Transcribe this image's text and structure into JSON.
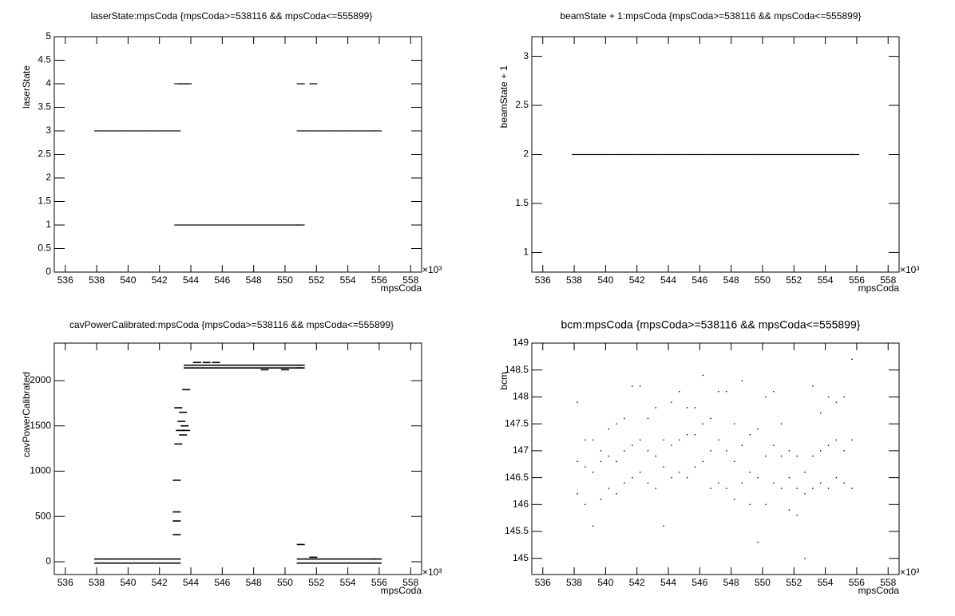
{
  "chart_data": [
    {
      "type": "scatter",
      "title": "laserState:mpsCoda {mpsCoda>=538116 && mpsCoda<=555899}",
      "x_label": "mpsCoda",
      "y_label": "laserState",
      "x_multiplier": "×10³",
      "xlim": [
        535.3,
        558.7
      ],
      "xticks": [
        536,
        538,
        540,
        542,
        544,
        546,
        548,
        550,
        552,
        554,
        556,
        558
      ],
      "ylim": [
        0,
        5
      ],
      "yticks": [
        0,
        0.5,
        1,
        1.5,
        2,
        2.5,
        3,
        3.5,
        4,
        4.5,
        5
      ],
      "color": "#000000",
      "x": [
        538.1,
        538.6,
        539.1,
        539.6,
        540.1,
        540.6,
        541.1,
        541.6,
        542.1,
        542.6,
        543.1,
        543.2,
        543.5,
        543.8,
        543.2,
        543.7,
        544.2,
        544.7,
        545.2,
        545.7,
        546.2,
        546.7,
        547.2,
        547.7,
        548.2,
        548.7,
        549.2,
        549.7,
        550.2,
        550.7,
        551.0,
        551.0,
        551.8,
        551.0,
        551.5,
        552.0,
        552.5,
        553.0,
        553.5,
        554.0,
        554.5,
        555.0,
        555.5,
        555.9
      ],
      "values": [
        3,
        3,
        3,
        3,
        3,
        3,
        3,
        3,
        3,
        3,
        3,
        4,
        4,
        4,
        1,
        1,
        1,
        1,
        1,
        1,
        1,
        1,
        1,
        1,
        1,
        1,
        1,
        1,
        1,
        1,
        1,
        4,
        4,
        3,
        3,
        3,
        3,
        3,
        3,
        3,
        3,
        3,
        3,
        3
      ]
    },
    {
      "type": "scatter",
      "title": "beamState + 1:mpsCoda {mpsCoda>=538116 && mpsCoda<=555899}",
      "x_label": "mpsCoda",
      "y_label": "beamState + 1",
      "x_multiplier": "×10³",
      "xlim": [
        535.3,
        558.7
      ],
      "xticks": [
        536,
        538,
        540,
        542,
        544,
        546,
        548,
        550,
        552,
        554,
        556,
        558
      ],
      "ylim": [
        0.8,
        3.2
      ],
      "yticks": [
        1,
        1.5,
        2,
        2.5,
        3
      ],
      "color": "#000000",
      "x": [
        538.1,
        538.6,
        539.1,
        539.6,
        540.1,
        540.6,
        541.1,
        541.6,
        542.1,
        542.6,
        543.1,
        543.6,
        544.1,
        544.6,
        545.1,
        545.6,
        546.1,
        546.6,
        547.1,
        547.6,
        548.1,
        548.6,
        549.1,
        549.6,
        550.1,
        550.6,
        551.1,
        551.6,
        552.1,
        552.6,
        553.1,
        553.6,
        554.1,
        554.6,
        555.1,
        555.6,
        555.9
      ],
      "values": [
        2,
        2,
        2,
        2,
        2,
        2,
        2,
        2,
        2,
        2,
        2,
        2,
        2,
        2,
        2,
        2,
        2,
        2,
        2,
        2,
        2,
        2,
        2,
        2,
        2,
        2,
        2,
        2,
        2,
        2,
        2,
        2,
        2,
        2,
        2,
        2,
        2
      ]
    },
    {
      "type": "scatter",
      "title": "cavPowerCalibrated:mpsCoda {mpsCoda>=538116 && mpsCoda<=555899}",
      "x_label": "mpsCoda",
      "y_label": "cavPowerCalibrated",
      "x_multiplier": "×10³",
      "xlim": [
        535.3,
        558.7
      ],
      "xticks": [
        536,
        538,
        540,
        542,
        544,
        546,
        548,
        550,
        552,
        554,
        556,
        558
      ],
      "ylim": [
        -141,
        2414
      ],
      "yticks": [
        0,
        500,
        1000,
        1500,
        2000
      ],
      "color": "#000000",
      "x": [
        538.1,
        538.6,
        539.1,
        539.6,
        540.1,
        540.6,
        541.1,
        541.6,
        542.1,
        542.6,
        543.1,
        538.1,
        538.6,
        539.1,
        539.6,
        540.1,
        540.6,
        541.1,
        541.6,
        542.1,
        542.6,
        543.1,
        543.2,
        543.2,
        543.3,
        543.4,
        543.5,
        543.5,
        543.6,
        543.7,
        543.1,
        543.1,
        543.1,
        543.1,
        543.7,
        543.8,
        544.3,
        544.8,
        545.3,
        545.8,
        546.3,
        546.8,
        547.3,
        547.8,
        548.3,
        548.8,
        549.3,
        549.8,
        550.3,
        550.8,
        551.0,
        543.8,
        544.3,
        544.8,
        545.3,
        545.8,
        546.3,
        546.8,
        547.3,
        547.8,
        548.3,
        548.8,
        549.3,
        549.8,
        550.3,
        550.8,
        551.0,
        544.4,
        545.0,
        545.6,
        548.7,
        550.0,
        551.0,
        551.5,
        552.0,
        552.5,
        553.0,
        553.5,
        554.0,
        554.5,
        555.0,
        555.5,
        555.9,
        551.0,
        551.5,
        552.0,
        552.5,
        553.0,
        553.5,
        554.0,
        554.5,
        555.0,
        555.5,
        555.9,
        551.0,
        551.8
      ],
      "values": [
        30,
        30,
        30,
        30,
        30,
        30,
        30,
        30,
        30,
        30,
        30,
        -15,
        -15,
        -15,
        -15,
        -15,
        -15,
        -15,
        -15,
        -15,
        -15,
        -15,
        1300,
        1700,
        1450,
        1550,
        1400,
        1650,
        1500,
        1450,
        900,
        550,
        300,
        450,
        1900,
        2170,
        2170,
        2170,
        2170,
        2170,
        2170,
        2170,
        2170,
        2170,
        2170,
        2170,
        2170,
        2170,
        2170,
        2170,
        2170,
        2140,
        2140,
        2140,
        2140,
        2140,
        2140,
        2140,
        2140,
        2140,
        2140,
        2140,
        2140,
        2140,
        2140,
        2140,
        2140,
        2200,
        2200,
        2200,
        2120,
        2120,
        30,
        30,
        30,
        30,
        30,
        30,
        30,
        30,
        30,
        30,
        30,
        -15,
        -15,
        -15,
        -15,
        -15,
        -15,
        -15,
        -15,
        -15,
        -15,
        -15,
        190,
        50
      ]
    },
    {
      "type": "scatter",
      "title": "bcm:mpsCoda {mpsCoda>=538116 && mpsCoda<=555899}",
      "x_label": "mpsCoda",
      "y_label": "bcm",
      "x_multiplier": "×10³",
      "xlim": [
        535.3,
        558.7
      ],
      "xticks": [
        536,
        538,
        540,
        542,
        544,
        546,
        548,
        550,
        552,
        554,
        556,
        558
      ],
      "ylim": [
        144.7,
        149.0
      ],
      "yticks": [
        145,
        145.5,
        146,
        146.5,
        147,
        147.5,
        148,
        148.5,
        149
      ],
      "color": "#000000",
      "x": [
        538.2,
        538.2,
        538.2,
        538.7,
        538.7,
        538.7,
        539.2,
        539.2,
        539.2,
        539.7,
        539.7,
        539.7,
        540.2,
        540.2,
        540.2,
        540.7,
        540.7,
        540.7,
        541.2,
        541.2,
        541.2,
        541.7,
        541.7,
        541.7,
        542.2,
        542.2,
        542.2,
        542.7,
        542.7,
        542.7,
        543.2,
        543.2,
        543.2,
        543.7,
        543.7,
        543.7,
        544.2,
        544.2,
        544.2,
        544.7,
        544.7,
        544.7,
        545.2,
        545.2,
        545.2,
        545.7,
        545.7,
        545.7,
        546.2,
        546.2,
        546.2,
        546.7,
        546.7,
        546.7,
        547.2,
        547.2,
        547.2,
        547.7,
        547.7,
        547.7,
        548.2,
        548.2,
        548.2,
        548.7,
        548.7,
        548.7,
        549.2,
        549.2,
        549.2,
        549.7,
        549.7,
        549.7,
        550.2,
        550.2,
        550.2,
        550.7,
        550.7,
        550.7,
        551.2,
        551.2,
        551.2,
        551.7,
        551.7,
        551.7,
        552.2,
        552.2,
        552.2,
        552.7,
        552.7,
        552.7,
        553.2,
        553.2,
        553.2,
        553.7,
        553.7,
        553.7,
        554.2,
        554.2,
        554.2,
        554.7,
        554.7,
        554.7,
        555.2,
        555.2,
        555.2,
        555.7,
        555.7,
        555.7
      ],
      "values": [
        146.2,
        146.8,
        147.9,
        146.0,
        146.7,
        147.2,
        145.6,
        146.6,
        147.2,
        146.1,
        146.8,
        147.0,
        146.3,
        146.9,
        147.4,
        146.2,
        146.8,
        147.5,
        146.4,
        147.0,
        147.6,
        146.5,
        147.1,
        148.2,
        146.6,
        147.2,
        148.2,
        146.4,
        147.0,
        147.6,
        146.3,
        146.9,
        147.8,
        145.6,
        146.7,
        147.2,
        146.5,
        147.1,
        147.9,
        146.6,
        147.2,
        148.1,
        146.5,
        147.3,
        147.8,
        146.7,
        147.3,
        147.8,
        146.8,
        147.5,
        148.4,
        146.3,
        147.0,
        147.6,
        146.4,
        147.2,
        148.1,
        146.3,
        147.0,
        148.1,
        146.1,
        146.8,
        147.5,
        146.4,
        147.1,
        148.3,
        146.0,
        146.6,
        147.3,
        145.3,
        146.5,
        147.4,
        146.0,
        146.9,
        148.0,
        146.4,
        147.1,
        148.1,
        146.3,
        146.9,
        147.5,
        145.9,
        146.5,
        147.0,
        145.8,
        146.3,
        146.9,
        145.0,
        146.2,
        146.6,
        146.3,
        146.9,
        148.2,
        146.4,
        147.0,
        147.7,
        146.3,
        147.1,
        148.0,
        146.5,
        147.2,
        147.9,
        146.4,
        147.0,
        148.0,
        146.3,
        147.2,
        148.7
      ]
    }
  ]
}
